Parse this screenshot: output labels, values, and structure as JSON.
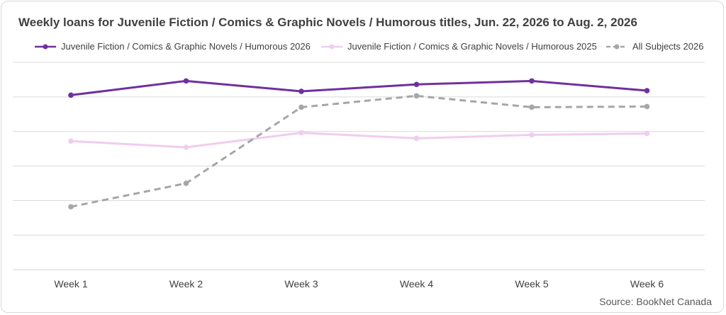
{
  "title": "Weekly loans for Juvenile Fiction / Comics & Graphic Novels / Humorous titles, Jun. 22, 2026 to Aug. 2, 2026",
  "source": "Source: BookNet Canada",
  "chart_data": {
    "type": "line",
    "title": "Weekly loans for Juvenile Fiction / Comics & Graphic Novels / Humorous titles, Jun. 22, 2026 to Aug. 2, 2026",
    "categories": [
      "Week 1",
      "Week 2",
      "Week 3",
      "Week 4",
      "Week 5",
      "Week 6"
    ],
    "ylim": [
      0,
      6
    ],
    "y_tick_labels_shown": false,
    "grid": true,
    "legend_position": "top",
    "series": [
      {
        "name": "Juvenile Fiction / Comics & Graphic Novels / Humorous 2026",
        "color": "#7030a0",
        "dash": "solid",
        "values": [
          5.05,
          5.46,
          5.16,
          5.36,
          5.46,
          5.18
        ]
      },
      {
        "name": "Juvenile Fiction / Comics & Graphic Novels / Humorous 2025",
        "color": "#f0cdee",
        "dash": "solid",
        "values": [
          3.72,
          3.54,
          3.96,
          3.8,
          3.9,
          3.94
        ]
      },
      {
        "name": "All Subjects 2026",
        "color": "#a6a6a6",
        "dash": "dashed",
        "values": [
          1.82,
          2.5,
          4.7,
          5.03,
          4.7,
          4.72
        ]
      }
    ]
  }
}
